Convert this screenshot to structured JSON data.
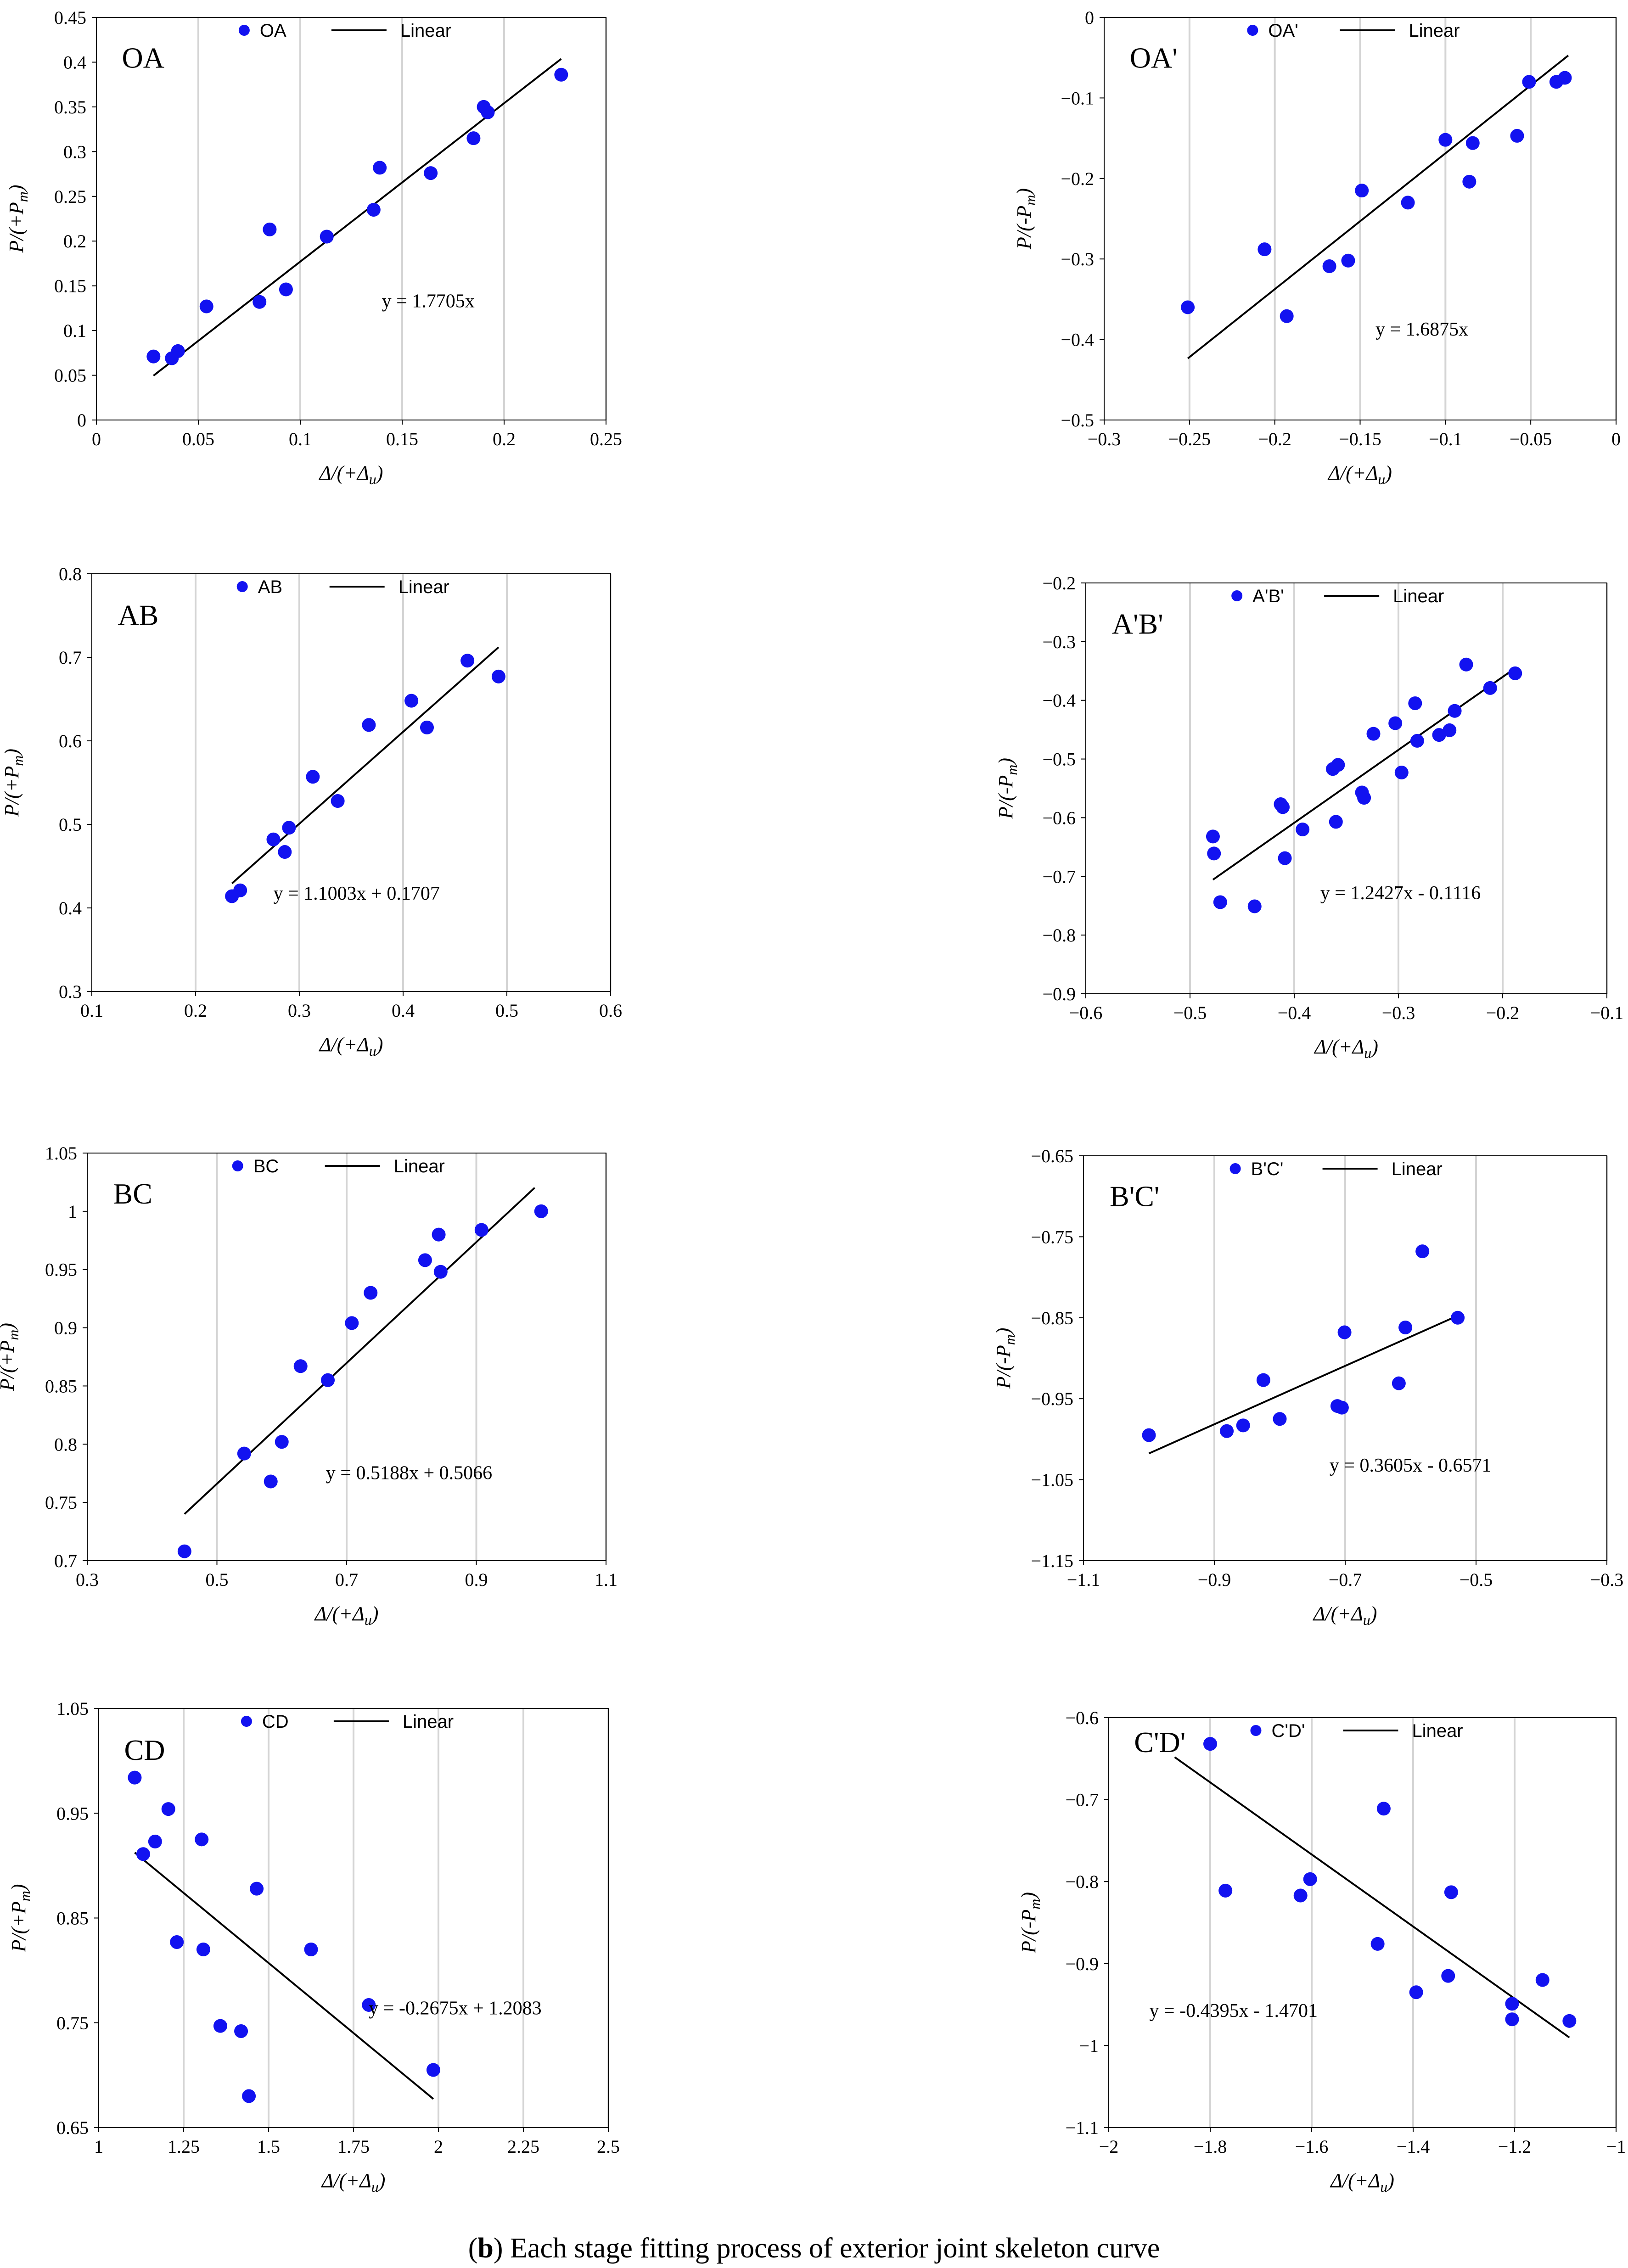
{
  "caption": {
    "label": "b",
    "text": " Each stage fitting process of exterior joint skeleton curve"
  },
  "chart_data": [
    {
      "type": "scatter",
      "title": "OA",
      "legend": [
        "OA",
        "Linear"
      ],
      "xlabel": "Δ/(+Δu)",
      "ylabel": "P/(+Pm)",
      "xlim": [
        0,
        0.25
      ],
      "xticks": [
        0,
        0.05,
        0.1,
        0.15,
        0.2,
        0.25
      ],
      "ylim": [
        0,
        0.45
      ],
      "yticks": [
        0,
        0.05,
        0.1,
        0.15,
        0.2,
        0.25,
        0.3,
        0.35,
        0.4,
        0.45
      ],
      "x": [
        0.028,
        0.037,
        0.04,
        0.054,
        0.08,
        0.085,
        0.093,
        0.113,
        0.136,
        0.139,
        0.164,
        0.185,
        0.19,
        0.192,
        0.228
      ],
      "y": [
        0.071,
        0.069,
        0.077,
        0.127,
        0.132,
        0.213,
        0.146,
        0.205,
        0.235,
        0.282,
        0.276,
        0.315,
        0.35,
        0.344,
        0.386
      ],
      "fit": {
        "slope": 1.7705,
        "intercept": 0,
        "x0": 0.028,
        "x1": 0.228
      },
      "equation": "y = 1.7705x"
    },
    {
      "type": "scatter",
      "title": "OA'",
      "legend": [
        "OA'",
        "Linear"
      ],
      "xlabel": "Δ/(+Δu)",
      "ylabel": "P/(-Pm)",
      "xlim": [
        -0.3,
        0
      ],
      "xticks": [
        -0.3,
        -0.25,
        -0.2,
        -0.15,
        -0.1,
        -0.05,
        0
      ],
      "ylim": [
        -0.5,
        0
      ],
      "yticks": [
        -0.5,
        -0.4,
        -0.3,
        -0.2,
        -0.1,
        0
      ],
      "x": [
        -0.251,
        -0.206,
        -0.193,
        -0.168,
        -0.157,
        -0.149,
        -0.122,
        -0.1,
        -0.086,
        -0.084,
        -0.058,
        -0.051,
        -0.035,
        -0.03
      ],
      "y": [
        -0.36,
        -0.288,
        -0.371,
        -0.309,
        -0.302,
        -0.215,
        -0.23,
        -0.152,
        -0.204,
        -0.156,
        -0.147,
        -0.08,
        -0.08,
        -0.075
      ],
      "fit": {
        "slope": 1.6875,
        "intercept": 0,
        "x0": -0.251,
        "x1": -0.028
      },
      "equation": "y = 1.6875x"
    },
    {
      "type": "scatter",
      "title": "AB",
      "legend": [
        "AB",
        "Linear"
      ],
      "xlabel": "Δ/(+Δu)",
      "ylabel": "P/(+Pm)",
      "xlim": [
        0.1,
        0.6
      ],
      "xticks": [
        0.1,
        0.2,
        0.3,
        0.4,
        0.5,
        0.6
      ],
      "ylim": [
        0.3,
        0.8
      ],
      "yticks": [
        0.3,
        0.4,
        0.5,
        0.6,
        0.7,
        0.8
      ],
      "x": [
        0.235,
        0.243,
        0.275,
        0.286,
        0.29,
        0.313,
        0.337,
        0.367,
        0.408,
        0.423,
        0.462,
        0.492
      ],
      "y": [
        0.414,
        0.421,
        0.482,
        0.467,
        0.496,
        0.557,
        0.528,
        0.619,
        0.648,
        0.616,
        0.696,
        0.677
      ],
      "fit": {
        "slope": 1.1003,
        "intercept": 0.1707,
        "x0": 0.235,
        "x1": 0.492
      },
      "equation": "y = 1.1003x + 0.1707"
    },
    {
      "type": "scatter",
      "title": "A'B'",
      "legend": [
        "A'B'",
        "Linear"
      ],
      "xlabel": "Δ/(+Δu)",
      "ylabel": "P/(-Pm)",
      "xlim": [
        -0.6,
        -0.1
      ],
      "xticks": [
        -0.6,
        -0.5,
        -0.4,
        -0.3,
        -0.2,
        -0.1
      ],
      "ylim": [
        -0.9,
        -0.2
      ],
      "yticks": [
        -0.9,
        -0.8,
        -0.7,
        -0.6,
        -0.5,
        -0.4,
        -0.3,
        -0.2
      ],
      "x": [
        -0.478,
        -0.477,
        -0.471,
        -0.438,
        -0.413,
        -0.411,
        -0.409,
        -0.392,
        -0.363,
        -0.36,
        -0.358,
        -0.335,
        -0.333,
        -0.324,
        -0.303,
        -0.297,
        -0.284,
        -0.282,
        -0.261,
        -0.251,
        -0.246,
        -0.235,
        -0.212,
        -0.188
      ],
      "y": [
        -0.632,
        -0.661,
        -0.744,
        -0.751,
        -0.577,
        -0.582,
        -0.669,
        -0.62,
        -0.517,
        -0.607,
        -0.51,
        -0.557,
        -0.566,
        -0.457,
        -0.439,
        -0.523,
        -0.405,
        -0.469,
        -0.459,
        -0.451,
        -0.418,
        -0.339,
        -0.379,
        -0.354
      ],
      "fit": {
        "slope": 1.2427,
        "intercept": -0.1116,
        "x0": -0.478,
        "x1": -0.188
      },
      "equation": "y = 1.2427x - 0.1116"
    },
    {
      "type": "scatter",
      "title": "BC",
      "legend": [
        "BC",
        "Linear"
      ],
      "xlabel": "Δ/(+Δu)",
      "ylabel": "P/(+Pm)",
      "xlim": [
        0.3,
        1.1
      ],
      "xticks": [
        0.3,
        0.5,
        0.7,
        0.9,
        1.1
      ],
      "ylim": [
        0.7,
        1.05
      ],
      "yticks": [
        0.7,
        0.75,
        0.8,
        0.85,
        0.9,
        0.95,
        1,
        1.05
      ],
      "x": [
        0.45,
        0.542,
        0.583,
        0.6,
        0.629,
        0.671,
        0.708,
        0.737,
        0.821,
        0.842,
        0.845,
        0.908,
        1.0
      ],
      "y": [
        0.708,
        0.792,
        0.768,
        0.802,
        0.867,
        0.855,
        0.904,
        0.93,
        0.958,
        0.98,
        0.948,
        0.984,
        1.0
      ],
      "fit": {
        "slope": 0.5188,
        "intercept": 0.5066,
        "x0": 0.45,
        "x1": 0.99
      },
      "equation": "y = 0.5188x + 0.5066"
    },
    {
      "type": "scatter",
      "title": "B'C'",
      "legend": [
        "B'C'",
        "Linear"
      ],
      "xlabel": "Δ/(+Δu)",
      "ylabel": "P/(-Pm)",
      "xlim": [
        -1.1,
        -0.3
      ],
      "xticks": [
        -1.1,
        -0.9,
        -0.7,
        -0.5,
        -0.3
      ],
      "ylim": [
        -1.15,
        -0.65
      ],
      "yticks": [
        -1.15,
        -1.05,
        -0.95,
        -0.85,
        -0.75,
        -0.65
      ],
      "x": [
        -1.0,
        -0.881,
        -0.856,
        -0.825,
        -0.8,
        -0.712,
        -0.705,
        -0.701,
        -0.618,
        -0.608,
        -0.582,
        -0.528
      ],
      "y": [
        -0.995,
        -0.99,
        -0.983,
        -0.927,
        -0.975,
        -0.959,
        -0.961,
        -0.868,
        -0.931,
        -0.862,
        -0.768,
        -0.85
      ],
      "fit": {
        "slope": 0.3605,
        "intercept": -0.6571,
        "x0": -1.0,
        "x1": -0.528
      },
      "equation": "y = 0.3605x - 0.6571"
    },
    {
      "type": "scatter",
      "title": "CD",
      "legend": [
        "CD",
        "Linear"
      ],
      "xlabel": "Δ/(+Δu)",
      "ylabel": "P/(+Pm)",
      "xlim": [
        1,
        2.5
      ],
      "xticks": [
        1,
        1.25,
        1.5,
        1.75,
        2,
        2.25,
        2.5
      ],
      "ylim": [
        0.65,
        1.05
      ],
      "yticks": [
        0.65,
        0.75,
        0.85,
        0.95,
        1.05
      ],
      "x": [
        1.106,
        1.131,
        1.166,
        1.205,
        1.23,
        1.303,
        1.308,
        1.358,
        1.419,
        1.442,
        1.465,
        1.625,
        1.795,
        1.985
      ],
      "y": [
        0.984,
        0.911,
        0.923,
        0.954,
        0.827,
        0.925,
        0.82,
        0.747,
        0.742,
        0.68,
        0.878,
        0.82,
        0.767,
        0.705
      ],
      "fit": {
        "slope": -0.2675,
        "intercept": 1.2083,
        "x0": 1.106,
        "x1": 1.985
      },
      "equation": "y = -0.2675x + 1.2083"
    },
    {
      "type": "scatter",
      "title": "C'D'",
      "legend": [
        "C'D'",
        "Linear"
      ],
      "xlabel": "Δ/(+Δu)",
      "ylabel": "P/(-Pm)",
      "xlim": [
        -2,
        -1
      ],
      "xticks": [
        -2,
        -1.8,
        -1.6,
        -1.4,
        -1.2,
        -1
      ],
      "ylim": [
        -1.1,
        -0.6
      ],
      "yticks": [
        -1.1,
        -1,
        -0.9,
        -0.8,
        -0.7,
        -0.6
      ],
      "x": [
        -1.8,
        -1.77,
        -1.622,
        -1.603,
        -1.47,
        -1.458,
        -1.394,
        -1.331,
        -1.325,
        -1.205,
        -1.205,
        -1.145,
        -1.092
      ],
      "y": [
        -0.632,
        -0.811,
        -0.817,
        -0.797,
        -0.876,
        -0.711,
        -0.935,
        -0.915,
        -0.813,
        -0.949,
        -0.968,
        -0.92,
        -0.97
      ],
      "fit": {
        "slope": -0.4395,
        "intercept": -1.4701,
        "x0": -1.87,
        "x1": -1.092
      },
      "equation": "y = -0.4395x - 1.4701"
    }
  ]
}
